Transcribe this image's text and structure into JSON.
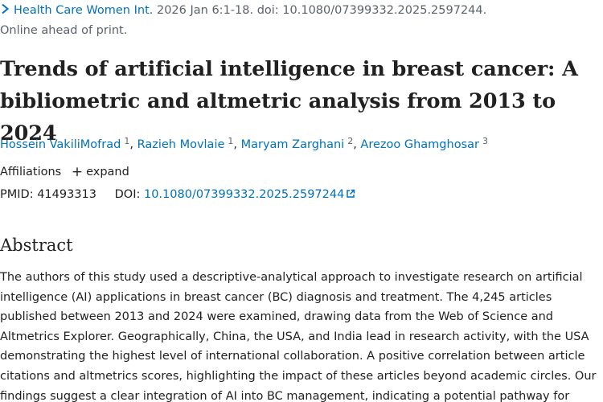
{
  "citation": {
    "journal": "Health Care Women Int.",
    "details": "2026 Jan 6:1-18. doi: 10.1080/07399332.2025.2597244."
  },
  "status": "Online ahead of print.",
  "title": "Trends of artificial intelligence in breast cancer: A bibliometric and altmetric analysis from 2013 to 2024",
  "authors": [
    {
      "name": "Hossein VakiliMofrad",
      "aff": "1"
    },
    {
      "name": "Razieh Movlaie",
      "aff": "1"
    },
    {
      "name": "Maryam Zarghani",
      "aff": "2"
    },
    {
      "name": "Arezoo Ghamghosar",
      "aff": "3"
    }
  ],
  "affiliations": {
    "label": "Affiliations",
    "expand_label": "expand"
  },
  "ids": {
    "pmid_label": "PMID:",
    "pmid": "41493313",
    "doi_label": "DOI:",
    "doi": "10.1080/07399332.2025.2597244"
  },
  "abstract": {
    "heading": "Abstract",
    "text": "The authors of this study used a descriptive-analytical approach to investigate research on artificial intelligence (AI) applications in breast cancer (BC) diagnosis and treatment. The 4,245 articles published between 2013 and 2024 were examined, drawing data from the Web of Science and Altmetrics Explorer. Geographically, China, the USA, and India lead in research activity, with the USA demonstrating the highest level of international collaboration. A positive correlation between article citations and altmetrics scores, highlighting the impact of these articles beyond academic circles. Our findings suggest a clear integration of AI into BC management, indicating a potential pathway for"
  },
  "colors": {
    "link": "#0071bc",
    "text": "#212121",
    "muted": "#5b616b"
  },
  "icons": {
    "journal_toggle": "chevron-right-icon",
    "expand": "plus-icon",
    "doi_external": "external-link-icon"
  }
}
